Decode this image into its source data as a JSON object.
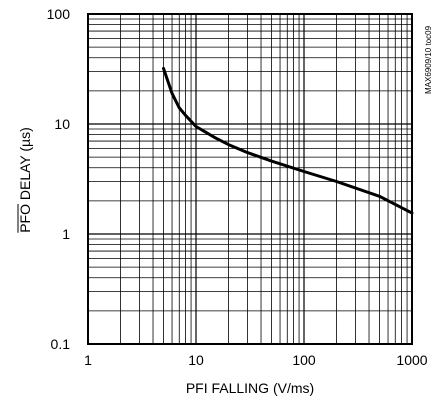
{
  "chart_data": {
    "type": "line",
    "x_scale": "log",
    "y_scale": "log",
    "xlim": [
      1,
      1000
    ],
    "ylim": [
      0.1,
      100
    ],
    "grid": true,
    "xlabel": "PFI FALLING (V/ms)",
    "ylabel_overlined": "PFO",
    "ylabel_rest": " DELAY (µs)",
    "x_ticks": [
      "1",
      "10",
      "100",
      "1000"
    ],
    "y_ticks": [
      "100",
      "10",
      "1",
      "0.1"
    ],
    "side_note": "MAX6909/10 toc09",
    "series": [
      {
        "color": "#000000",
        "x": [
          5,
          6,
          7,
          8,
          10,
          15,
          20,
          30,
          50,
          100,
          200,
          500,
          1000
        ],
        "y": [
          32,
          19,
          14,
          12,
          9.5,
          7.5,
          6.5,
          5.5,
          4.6,
          3.7,
          3.0,
          2.2,
          1.55
        ]
      }
    ]
  }
}
